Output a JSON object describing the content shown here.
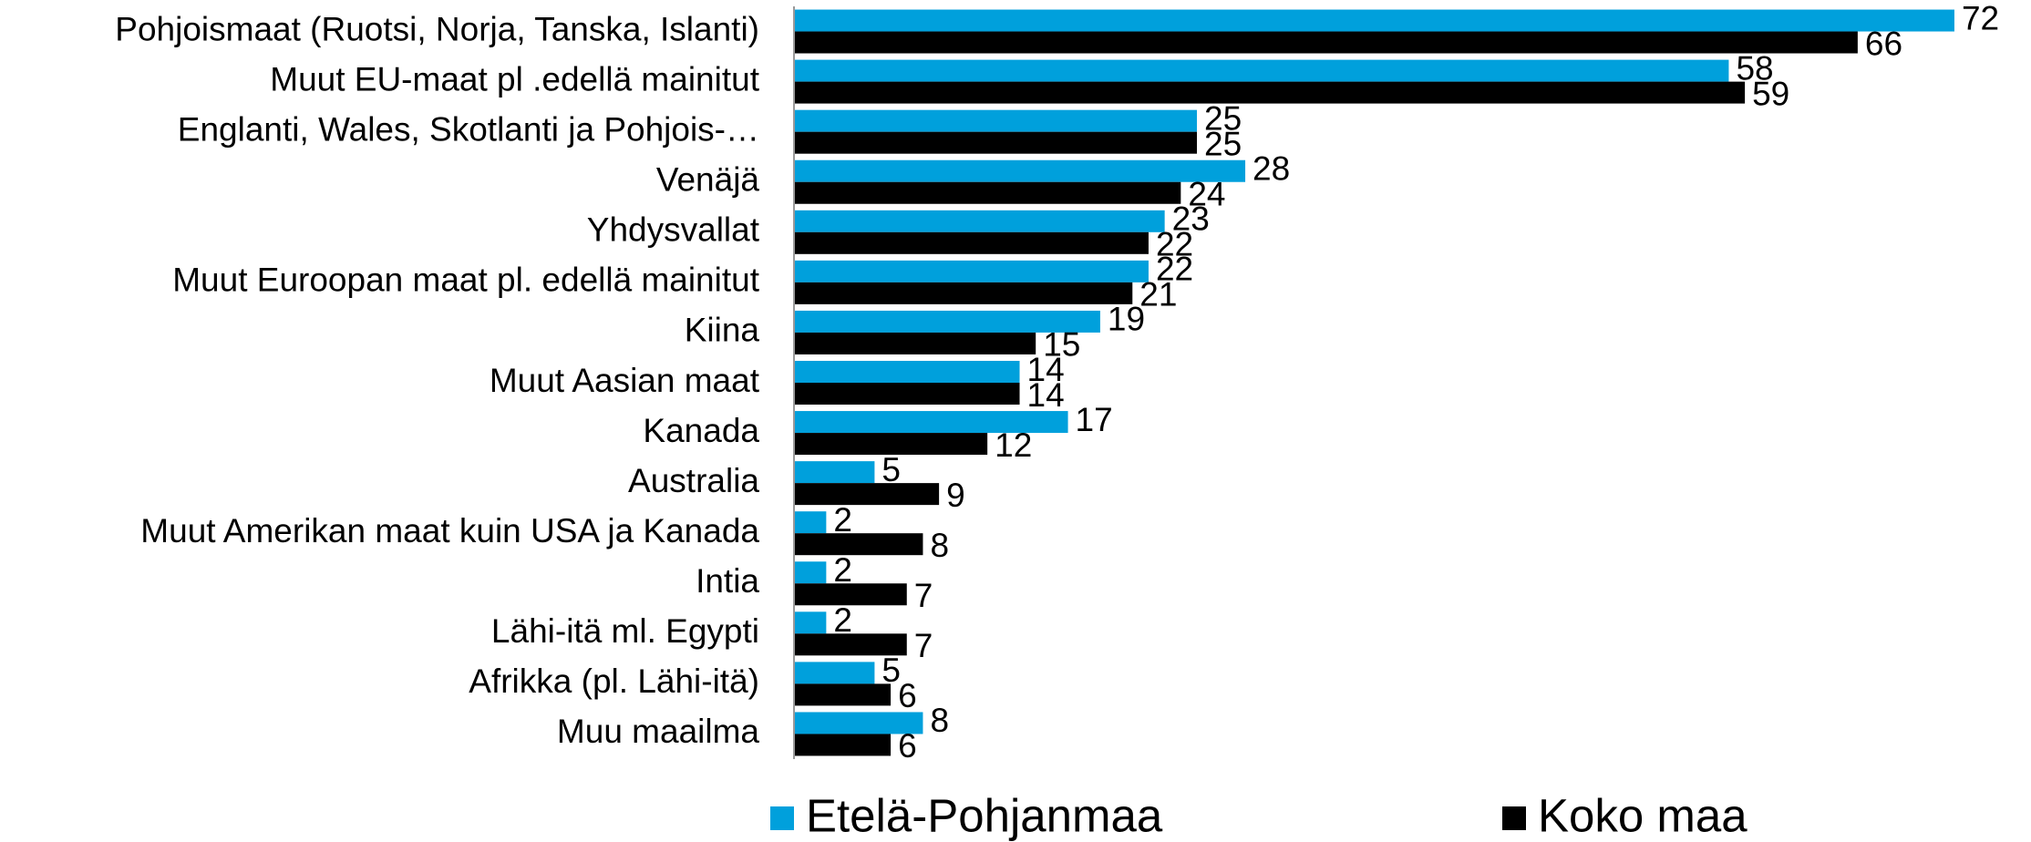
{
  "chart_data": {
    "type": "hbar",
    "categories": [
      "Pohjoismaat (Ruotsi, Norja, Tanska, Islanti)",
      "Muut EU-maat pl .edellä mainitut",
      "Englanti, Wales, Skotlanti ja Pohjois-…",
      "Venäjä",
      "Yhdysvallat",
      "Muut Euroopan maat pl. edellä mainitut",
      "Kiina",
      "Muut Aasian maat",
      "Kanada",
      "Australia",
      "Muut Amerikan maat kuin USA ja Kanada",
      "Intia",
      "Lähi-itä ml. Egypti",
      "Afrikka (pl. Lähi-itä)",
      "Muu maailma"
    ],
    "series": [
      {
        "name": "Etelä-Pohjanmaa",
        "color": "#00a0dc",
        "values": [
          72,
          58,
          25,
          28,
          23,
          22,
          19,
          14,
          17,
          5,
          2,
          2,
          2,
          5,
          8
        ]
      },
      {
        "name": "Koko maa",
        "color": "#000000",
        "values": [
          66,
          59,
          25,
          24,
          22,
          21,
          15,
          14,
          12,
          9,
          8,
          7,
          7,
          6,
          6
        ]
      }
    ],
    "xlim": [
      0,
      75
    ]
  }
}
